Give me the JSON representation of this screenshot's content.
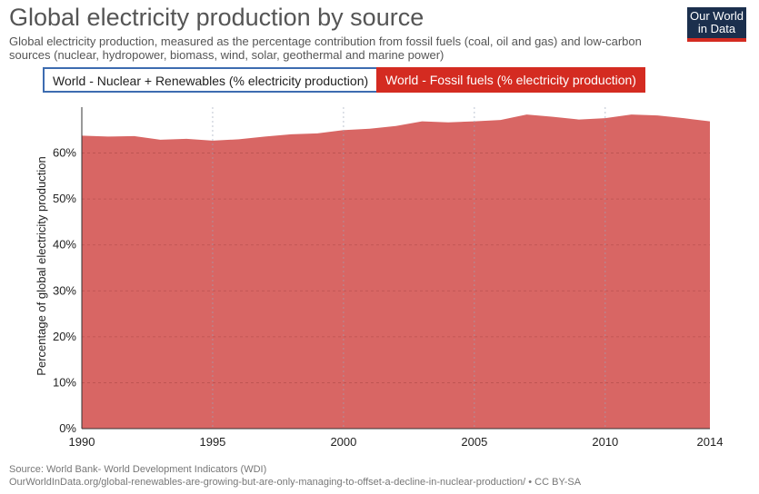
{
  "header": {
    "title": "Global electricity production by source",
    "subtitle": "Global electricity production, measured as the percentage contribution from fossil fuels (coal, oil and gas) and low-carbon sources (nuclear, hydropower, biomass, wind, solar, geothermal and marine power)"
  },
  "logo": {
    "line1": "Our World",
    "line2": "in Data"
  },
  "legend": {
    "nuclear_label": "World - Nuclear + Renewables (% electricity production)",
    "fossil_label": "World - Fossil fuels (% electricity production)"
  },
  "colors": {
    "fossil": "#d86664",
    "fossil_legend": "#d42b21",
    "nuclear_border": "#3d6cb0"
  },
  "footer": {
    "source": "Source: World Bank- World Development Indicators (WDI)",
    "url": "OurWorldInData.org/global-renewables-are-growing-but-are-only-managing-to-offset-a-decline-in-nuclear-production/ • CC BY-SA"
  },
  "chart_data": {
    "type": "area",
    "title": "Global electricity production by source",
    "ylabel": "Percentage of global electricity production",
    "xlabel": "",
    "xlim": [
      1990,
      2014
    ],
    "ylim": [
      0,
      70
    ],
    "x_ticks": [
      1990,
      1995,
      2000,
      2005,
      2010,
      2014
    ],
    "y_ticks": [
      {
        "value": 0,
        "label": "0%"
      },
      {
        "value": 10,
        "label": "10%"
      },
      {
        "value": 20,
        "label": "20%"
      },
      {
        "value": 30,
        "label": "30%"
      },
      {
        "value": 40,
        "label": "40%"
      },
      {
        "value": 50,
        "label": "50%"
      },
      {
        "value": 60,
        "label": "60%"
      }
    ],
    "series": [
      {
        "name": "World - Fossil fuels (% electricity production)",
        "x": [
          1990,
          1991,
          1992,
          1993,
          1994,
          1995,
          1996,
          1997,
          1998,
          1999,
          2000,
          2001,
          2002,
          2003,
          2004,
          2005,
          2006,
          2007,
          2008,
          2009,
          2010,
          2011,
          2012,
          2013,
          2014
        ],
        "values": [
          63.8,
          63.6,
          63.7,
          62.9,
          63.1,
          62.7,
          63.0,
          63.6,
          64.1,
          64.3,
          65.0,
          65.3,
          65.9,
          66.9,
          66.7,
          66.9,
          67.2,
          68.4,
          67.9,
          67.3,
          67.6,
          68.4,
          68.2,
          67.6,
          66.9
        ]
      }
    ]
  }
}
